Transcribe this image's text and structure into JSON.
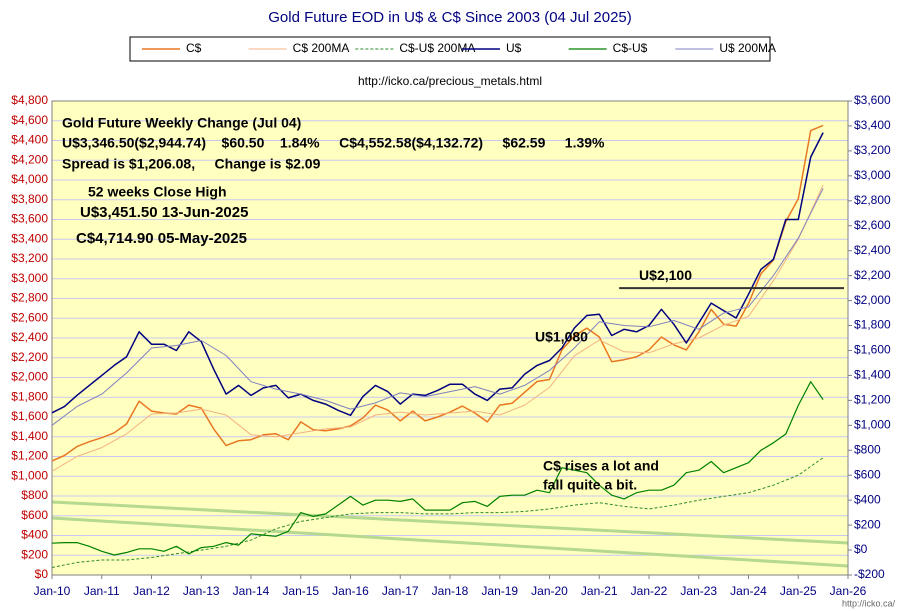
{
  "chart_data": {
    "type": "line",
    "title": "Gold Future  EOD in U$ & C$ Since 2003 (04 Jul 2025)",
    "subtitle": "http://icko.ca/precious_metals.html",
    "credit": "http://icko.ca/",
    "xlim": [
      2010,
      2026
    ],
    "xticks": [
      {
        "value": 2010,
        "label": "Jan-10"
      },
      {
        "value": 2011,
        "label": "Jan-11"
      },
      {
        "value": 2012,
        "label": "Jan-12"
      },
      {
        "value": 2013,
        "label": "Jan-13"
      },
      {
        "value": 2014,
        "label": "Jan-14"
      },
      {
        "value": 2015,
        "label": "Jan-15"
      },
      {
        "value": 2016,
        "label": "Jan-16"
      },
      {
        "value": 2017,
        "label": "Jan-17"
      },
      {
        "value": 2018,
        "label": "Jan-18"
      },
      {
        "value": 2019,
        "label": "Jan-19"
      },
      {
        "value": 2020,
        "label": "Jan-20"
      },
      {
        "value": 2021,
        "label": "Jan-21"
      },
      {
        "value": 2022,
        "label": "Jan-22"
      },
      {
        "value": 2023,
        "label": "Jan-23"
      },
      {
        "value": 2024,
        "label": "Jan-24"
      },
      {
        "value": 2025,
        "label": "Jan-25"
      },
      {
        "value": 2026,
        "label": "Jan-26"
      }
    ],
    "ylim": [
      0,
      4800
    ],
    "yticks": [
      {
        "value": 0,
        "label": "$0"
      },
      {
        "value": 200,
        "label": "$200"
      },
      {
        "value": 400,
        "label": "$400"
      },
      {
        "value": 600,
        "label": "$600"
      },
      {
        "value": 800,
        "label": "$800"
      },
      {
        "value": 1000,
        "label": "$1,000"
      },
      {
        "value": 1200,
        "label": "$1,200"
      },
      {
        "value": 1400,
        "label": "$1,400"
      },
      {
        "value": 1600,
        "label": "$1,600"
      },
      {
        "value": 1800,
        "label": "$1,800"
      },
      {
        "value": 2000,
        "label": "$2,000"
      },
      {
        "value": 2200,
        "label": "$2,200"
      },
      {
        "value": 2400,
        "label": "$2,400"
      },
      {
        "value": 2600,
        "label": "$2,600"
      },
      {
        "value": 2800,
        "label": "$2,800"
      },
      {
        "value": 3000,
        "label": "$3,000"
      },
      {
        "value": 3200,
        "label": "$3,200"
      },
      {
        "value": 3400,
        "label": "$3,400"
      },
      {
        "value": 3600,
        "label": "$3,600"
      },
      {
        "value": 3800,
        "label": "$3,800"
      },
      {
        "value": 4000,
        "label": "$4,000"
      },
      {
        "value": 4200,
        "label": "$4,200"
      },
      {
        "value": 4400,
        "label": "$4,400"
      },
      {
        "value": 4600,
        "label": "$4,600"
      },
      {
        "value": 4800,
        "label": "$4,800"
      }
    ],
    "y2lim": [
      -200,
      3600
    ],
    "y2ticks": [
      {
        "value": -200,
        "label": "-$200"
      },
      {
        "value": 0,
        "label": "$0"
      },
      {
        "value": 200,
        "label": "$200"
      },
      {
        "value": 400,
        "label": "$400"
      },
      {
        "value": 600,
        "label": "$600"
      },
      {
        "value": 800,
        "label": "$800"
      },
      {
        "value": 1000,
        "label": "$1,000"
      },
      {
        "value": 1200,
        "label": "$1,200"
      },
      {
        "value": 1400,
        "label": "$1,400"
      },
      {
        "value": 1600,
        "label": "$1,600"
      },
      {
        "value": 1800,
        "label": "$1,800"
      },
      {
        "value": 2000,
        "label": "$2,000"
      },
      {
        "value": 2200,
        "label": "$2,200"
      },
      {
        "value": 2400,
        "label": "$2,400"
      },
      {
        "value": 2600,
        "label": "$2,600"
      },
      {
        "value": 2800,
        "label": "$2,800"
      },
      {
        "value": 3000,
        "label": "$3,000"
      },
      {
        "value": 3200,
        "label": "$3,200"
      },
      {
        "value": 3400,
        "label": "$3,400"
      },
      {
        "value": 3600,
        "label": "$3,600"
      }
    ],
    "grid": true,
    "legend": "top",
    "series": [
      {
        "name": "C$",
        "color": "#e87722",
        "width": 1.5,
        "axis": "y",
        "x": [
          2010,
          2010.25,
          2010.5,
          2010.75,
          2011,
          2011.25,
          2011.5,
          2011.75,
          2012,
          2012.25,
          2012.5,
          2012.75,
          2013,
          2013.25,
          2013.5,
          2013.75,
          2014,
          2014.25,
          2014.5,
          2014.75,
          2015,
          2015.25,
          2015.5,
          2015.75,
          2016,
          2016.25,
          2016.5,
          2016.75,
          2017,
          2017.25,
          2017.5,
          2017.75,
          2018,
          2018.25,
          2018.5,
          2018.75,
          2019,
          2019.25,
          2019.5,
          2019.75,
          2020,
          2020.25,
          2020.5,
          2020.75,
          2021,
          2021.25,
          2021.5,
          2021.75,
          2022,
          2022.25,
          2022.5,
          2022.75,
          2023,
          2023.25,
          2023.5,
          2023.75,
          2024,
          2024.25,
          2024.5,
          2024.75,
          2025,
          2025.25,
          2025.5
        ],
        "values": [
          1155,
          1210,
          1300,
          1350,
          1390,
          1440,
          1530,
          1760,
          1660,
          1640,
          1630,
          1720,
          1690,
          1480,
          1310,
          1360,
          1370,
          1420,
          1430,
          1370,
          1550,
          1470,
          1460,
          1480,
          1510,
          1590,
          1720,
          1670,
          1560,
          1660,
          1560,
          1600,
          1650,
          1710,
          1640,
          1550,
          1720,
          1740,
          1850,
          1960,
          1980,
          2280,
          2420,
          2500,
          2410,
          2160,
          2180,
          2210,
          2280,
          2410,
          2330,
          2280,
          2460,
          2690,
          2540,
          2520,
          2750,
          3050,
          3190,
          3580,
          3810,
          4500,
          4552.58
        ]
      },
      {
        "name": "C$ 200MA",
        "color": "#f4b183",
        "width": 1,
        "axis": "y",
        "x": [
          2010,
          2010.5,
          2011,
          2011.5,
          2012,
          2012.5,
          2013,
          2013.5,
          2014,
          2014.5,
          2015,
          2015.5,
          2016,
          2016.5,
          2017,
          2017.5,
          2018,
          2018.5,
          2019,
          2019.5,
          2020,
          2020.5,
          2021,
          2021.5,
          2022,
          2022.5,
          2023,
          2023.5,
          2024,
          2024.5,
          2025,
          2025.5
        ],
        "values": [
          1050,
          1200,
          1290,
          1430,
          1630,
          1640,
          1680,
          1620,
          1420,
          1400,
          1440,
          1480,
          1500,
          1620,
          1650,
          1620,
          1640,
          1660,
          1620,
          1720,
          1900,
          2220,
          2380,
          2260,
          2250,
          2340,
          2400,
          2530,
          2620,
          2980,
          3400,
          3950
        ]
      },
      {
        "name": "C$-U$ 200MA",
        "color": "#2e8b2e",
        "width": 1,
        "dashed": true,
        "axis": "y2",
        "x": [
          2010,
          2010.5,
          2011,
          2011.5,
          2012,
          2012.5,
          2013,
          2013.5,
          2014,
          2014.5,
          2015,
          2015.5,
          2016,
          2016.5,
          2017,
          2017.5,
          2018,
          2018.5,
          2019,
          2019.5,
          2020,
          2020.5,
          2021,
          2021.5,
          2022,
          2022.5,
          2023,
          2023.5,
          2024,
          2024.5,
          2025,
          2025.5
        ],
        "values": [
          -140,
          -100,
          -80,
          -80,
          -60,
          -30,
          0,
          30,
          80,
          170,
          230,
          260,
          290,
          300,
          300,
          290,
          290,
          300,
          300,
          310,
          330,
          360,
          380,
          350,
          330,
          360,
          400,
          430,
          460,
          520,
          600,
          740
        ]
      },
      {
        "name": "U$",
        "color": "#000080",
        "width": 1.5,
        "axis": "y2",
        "x": [
          2010,
          2010.25,
          2010.5,
          2010.75,
          2011,
          2011.25,
          2011.5,
          2011.75,
          2012,
          2012.25,
          2012.5,
          2012.75,
          2013,
          2013.25,
          2013.5,
          2013.75,
          2014,
          2014.25,
          2014.5,
          2014.75,
          2015,
          2015.25,
          2015.5,
          2015.75,
          2016,
          2016.25,
          2016.5,
          2016.75,
          2017,
          2017.25,
          2017.5,
          2017.75,
          2018,
          2018.25,
          2018.5,
          2018.75,
          2019,
          2019.25,
          2019.5,
          2019.75,
          2020,
          2020.25,
          2020.5,
          2020.75,
          2021,
          2021.25,
          2021.5,
          2021.75,
          2022,
          2022.25,
          2022.5,
          2022.75,
          2023,
          2023.25,
          2023.5,
          2023.75,
          2024,
          2024.25,
          2024.5,
          2024.75,
          2025,
          2025.25,
          2025.5
        ],
        "values": [
          1100,
          1150,
          1240,
          1320,
          1400,
          1480,
          1550,
          1750,
          1650,
          1650,
          1600,
          1750,
          1670,
          1450,
          1250,
          1320,
          1240,
          1300,
          1320,
          1220,
          1250,
          1200,
          1170,
          1120,
          1080,
          1230,
          1320,
          1270,
          1170,
          1250,
          1240,
          1280,
          1330,
          1330,
          1250,
          1200,
          1290,
          1300,
          1410,
          1480,
          1520,
          1620,
          1780,
          1880,
          1890,
          1720,
          1770,
          1750,
          1800,
          1930,
          1810,
          1660,
          1820,
          1980,
          1920,
          1860,
          2050,
          2250,
          2330,
          2650,
          2650,
          3150,
          3346.5
        ]
      },
      {
        "name": "C$-U$",
        "color": "#008000",
        "width": 1.2,
        "axis": "y2",
        "x": [
          2010,
          2010.25,
          2010.5,
          2010.75,
          2011,
          2011.25,
          2011.5,
          2011.75,
          2012,
          2012.25,
          2012.5,
          2012.75,
          2013,
          2013.25,
          2013.5,
          2013.75,
          2014,
          2014.25,
          2014.5,
          2014.75,
          2015,
          2015.25,
          2015.5,
          2015.75,
          2016,
          2016.25,
          2016.5,
          2016.75,
          2017,
          2017.25,
          2017.5,
          2017.75,
          2018,
          2018.25,
          2018.5,
          2018.75,
          2019,
          2019.25,
          2019.5,
          2019.75,
          2020,
          2020.25,
          2020.5,
          2020.75,
          2021,
          2021.25,
          2021.5,
          2021.75,
          2022,
          2022.25,
          2022.5,
          2022.75,
          2023,
          2023.25,
          2023.5,
          2023.75,
          2024,
          2024.25,
          2024.5,
          2024.75,
          2025,
          2025.25,
          2025.5
        ],
        "values": [
          55,
          60,
          60,
          30,
          -10,
          -40,
          -20,
          10,
          10,
          -10,
          30,
          -30,
          20,
          30,
          60,
          40,
          130,
          120,
          110,
          150,
          300,
          270,
          290,
          360,
          430,
          360,
          400,
          400,
          390,
          410,
          320,
          320,
          320,
          380,
          390,
          350,
          430,
          440,
          440,
          480,
          460,
          660,
          640,
          620,
          520,
          440,
          410,
          460,
          480,
          480,
          520,
          620,
          640,
          710,
          620,
          660,
          700,
          800,
          860,
          930,
          1160,
          1350,
          1206.08
        ]
      },
      {
        "name": "U$ 200MA",
        "color": "#8080c0",
        "width": 1,
        "axis": "y2",
        "x": [
          2010,
          2010.5,
          2011,
          2011.5,
          2012,
          2012.5,
          2013,
          2013.5,
          2014,
          2014.5,
          2015,
          2015.5,
          2016,
          2016.5,
          2017,
          2017.5,
          2018,
          2018.5,
          2019,
          2019.5,
          2020,
          2020.5,
          2021,
          2021.5,
          2022,
          2022.5,
          2023,
          2023.5,
          2024,
          2024.5,
          2025,
          2025.5
        ],
        "values": [
          1000,
          1150,
          1250,
          1420,
          1620,
          1640,
          1680,
          1560,
          1350,
          1290,
          1250,
          1200,
          1130,
          1180,
          1260,
          1230,
          1270,
          1310,
          1250,
          1320,
          1440,
          1620,
          1830,
          1800,
          1790,
          1840,
          1770,
          1900,
          1950,
          2200,
          2500,
          2900
        ]
      }
    ],
    "hline": {
      "value": 2100,
      "axis": "y2",
      "label": "U$2,100"
    },
    "annotations": [
      "Gold Future Weekly Change (Jul 04)",
      "U$3,346.50($2,944.74)    $60.50    1.84%     C$4,552.58($4,132.72)     $62.59     1.39%",
      "Spread is $1,206.08,     Change is $2.09",
      "52 weeks Close High",
      "U$3,451.50 13-Jun-2025",
      "C$4,714.90 05-May-2025",
      "U$1,080",
      "C$ rises a lot and",
      "fall quite a bit."
    ]
  }
}
